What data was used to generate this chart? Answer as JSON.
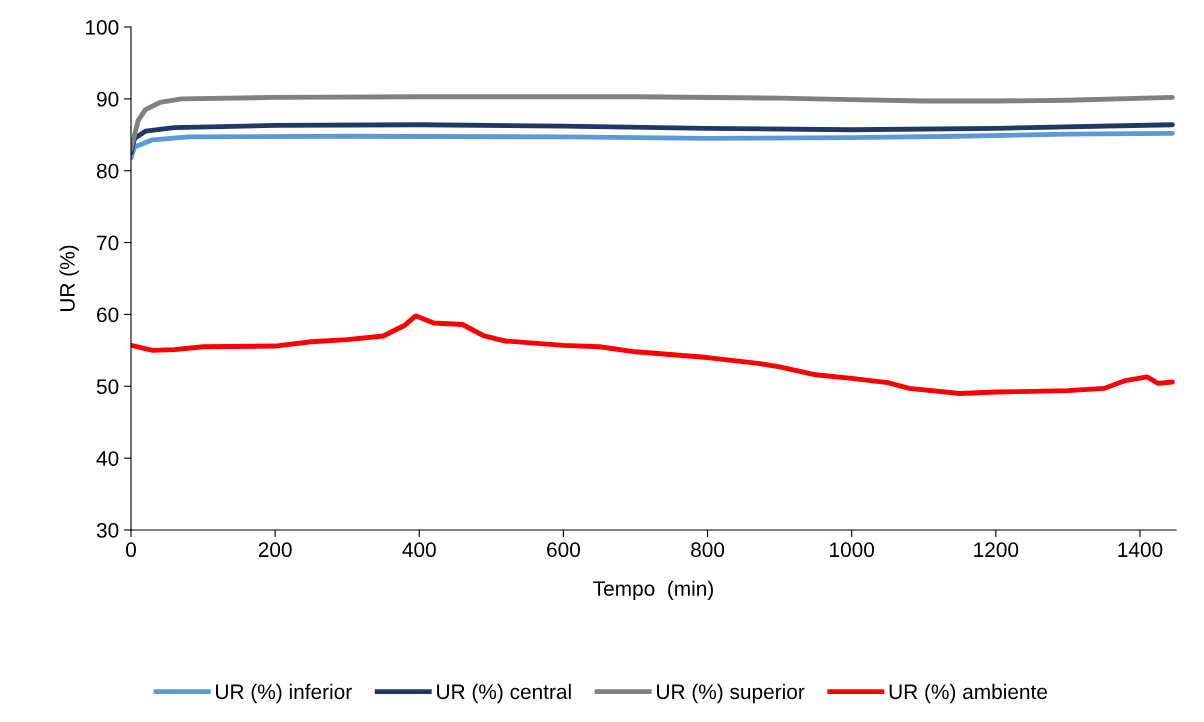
{
  "chart_data": {
    "type": "line",
    "xlabel": "Tempo  (min)",
    "ylabel": "UR (%)",
    "xlim": [
      0,
      1450
    ],
    "xticks": [
      0,
      200,
      400,
      600,
      800,
      1000,
      1200,
      1400
    ],
    "ylim": [
      30,
      100
    ],
    "yticks": [
      30,
      40,
      50,
      60,
      70,
      80,
      90,
      100
    ],
    "grid": false,
    "legend": "bottom",
    "marker": "none",
    "line_style": "solid",
    "series": [
      {
        "name": "UR (%) inferior",
        "color": "#5b9bd5",
        "x": [
          0,
          5,
          30,
          80,
          300,
          600,
          800,
          1000,
          1150,
          1300,
          1445
        ],
        "values": [
          81.8,
          83.3,
          84.3,
          84.7,
          84.8,
          84.7,
          84.5,
          84.6,
          84.8,
          85.1,
          85.2
        ]
      },
      {
        "name": "UR (%) central",
        "color": "#1f3864",
        "x": [
          0,
          5,
          20,
          60,
          200,
          400,
          600,
          800,
          1000,
          1200,
          1445
        ],
        "values": [
          82.5,
          84.5,
          85.5,
          86.0,
          86.3,
          86.4,
          86.2,
          85.9,
          85.7,
          85.9,
          86.4
        ]
      },
      {
        "name": "UR (%) superior",
        "color": "#808080",
        "x": [
          0,
          10,
          20,
          40,
          70,
          200,
          400,
          700,
          900,
          1000,
          1100,
          1200,
          1300,
          1445
        ],
        "values": [
          83.0,
          87.0,
          88.5,
          89.5,
          90.0,
          90.2,
          90.3,
          90.3,
          90.1,
          89.9,
          89.7,
          89.7,
          89.8,
          90.2
        ]
      },
      {
        "name": "UR (%) ambiente",
        "color": "#ff0000",
        "x": [
          0,
          30,
          60,
          100,
          200,
          250,
          300,
          350,
          380,
          395,
          420,
          460,
          490,
          520,
          600,
          650,
          700,
          800,
          870,
          900,
          950,
          1000,
          1050,
          1080,
          1150,
          1200,
          1250,
          1300,
          1350,
          1380,
          1410,
          1425,
          1445
        ],
        "values": [
          55.7,
          55.0,
          55.1,
          55.5,
          55.6,
          56.2,
          56.5,
          57.0,
          58.5,
          59.8,
          58.8,
          58.6,
          57.0,
          56.3,
          55.7,
          55.5,
          54.8,
          54.0,
          53.2,
          52.7,
          51.6,
          51.1,
          50.5,
          49.7,
          49.0,
          49.2,
          49.3,
          49.4,
          49.7,
          50.8,
          51.3,
          50.4,
          50.6
        ]
      }
    ]
  }
}
